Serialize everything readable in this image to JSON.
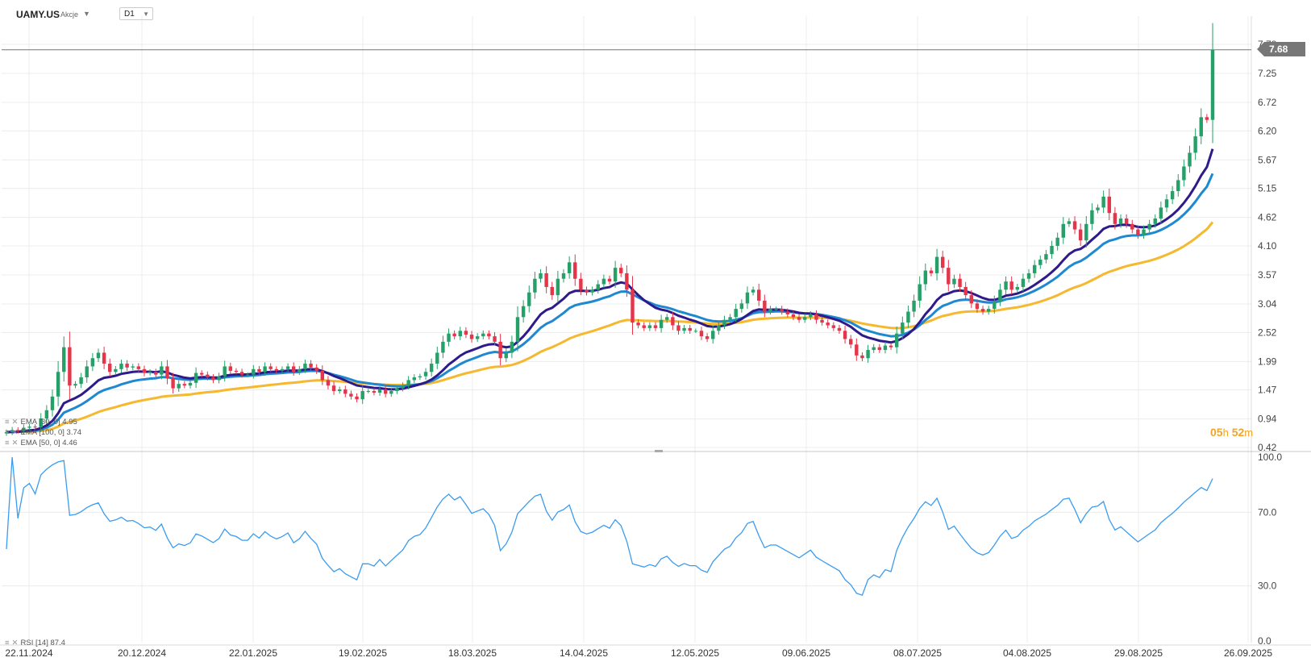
{
  "header": {
    "symbol": "UAMY.US",
    "instrument_type": "Akcje",
    "timeframe": "D1"
  },
  "price_axis": {
    "labels": [
      "7.78",
      "7.25",
      "6.72",
      "6.20",
      "5.67",
      "5.15",
      "4.62",
      "4.10",
      "3.57",
      "3.04",
      "2.52",
      "1.99",
      "1.47",
      "0.94",
      "0.42"
    ],
    "current_price_label": "7.68",
    "current_price": 7.68
  },
  "rsi_axis": {
    "labels": [
      "100.0",
      "70.0",
      "30.0",
      "0.0"
    ]
  },
  "date_axis": {
    "labels": [
      "22.11.2024",
      "20.12.2024",
      "22.01.2025",
      "19.02.2025",
      "18.03.2025",
      "14.04.2025",
      "12.05.2025",
      "09.06.2025",
      "08.07.2025",
      "04.08.2025",
      "29.08.2025",
      "26.09.2025"
    ]
  },
  "indicators": {
    "ema30": {
      "label": "EMA [30, 0] 4.95",
      "color": "#2e1a8a"
    },
    "ema50_blue": {
      "label": "EMA [100, 0] 3.74",
      "color": "#1e88d0"
    },
    "ema50_yellow": {
      "label": "EMA [50, 0] 4.46",
      "color": "#f5b82e"
    },
    "rsi": {
      "label": "RSI [14] 87.4",
      "color": "#3a9cf0"
    }
  },
  "countdown": {
    "h": "05",
    "h_unit": "h",
    "m": "52",
    "m_unit": "m"
  },
  "colors": {
    "up": "#26a069",
    "down": "#e5354a",
    "grid": "#ececec"
  },
  "chart_data": {
    "type": "candlestick",
    "title": "UAMY.US",
    "xlabel": "",
    "ylabel": "",
    "ylim": [
      0.42,
      8.0
    ],
    "x_range": [
      "22.11.2024",
      "26.09.2025"
    ],
    "close": [
      0.7,
      0.74,
      0.72,
      0.78,
      0.8,
      0.79,
      0.95,
      1.1,
      1.35,
      1.8,
      2.25,
      1.55,
      1.58,
      1.7,
      1.9,
      2.05,
      2.15,
      1.95,
      1.8,
      1.85,
      1.95,
      1.88,
      1.9,
      1.85,
      1.78,
      1.8,
      1.75,
      1.9,
      1.68,
      1.5,
      1.58,
      1.55,
      1.6,
      1.78,
      1.75,
      1.7,
      1.65,
      1.72,
      1.9,
      1.82,
      1.8,
      1.75,
      1.75,
      1.85,
      1.8,
      1.9,
      1.85,
      1.82,
      1.85,
      1.9,
      1.8,
      1.85,
      1.95,
      1.88,
      1.82,
      1.65,
      1.55,
      1.45,
      1.48,
      1.4,
      1.35,
      1.3,
      1.45,
      1.45,
      1.42,
      1.48,
      1.4,
      1.45,
      1.5,
      1.55,
      1.65,
      1.7,
      1.72,
      1.8,
      1.95,
      2.15,
      2.35,
      2.5,
      2.45,
      2.55,
      2.48,
      2.4,
      2.45,
      2.5,
      2.45,
      2.35,
      2.05,
      2.15,
      2.35,
      2.8,
      3.0,
      3.25,
      3.5,
      3.6,
      3.35,
      3.2,
      3.5,
      3.6,
      3.8,
      3.5,
      3.3,
      3.25,
      3.3,
      3.4,
      3.5,
      3.45,
      3.7,
      3.6,
      3.3,
      2.7,
      2.65,
      2.6,
      2.65,
      2.6,
      2.75,
      2.8,
      2.65,
      2.55,
      2.6,
      2.55,
      2.55,
      2.45,
      2.4,
      2.55,
      2.65,
      2.75,
      2.8,
      2.95,
      3.05,
      3.25,
      3.3,
      3.1,
      2.9,
      2.95,
      2.95,
      2.9,
      2.85,
      2.8,
      2.75,
      2.8,
      2.85,
      2.75,
      2.7,
      2.65,
      2.6,
      2.55,
      2.4,
      2.3,
      2.1,
      2.05,
      2.2,
      2.25,
      2.2,
      2.28,
      2.25,
      2.5,
      2.7,
      2.9,
      3.1,
      3.4,
      3.65,
      3.6,
      3.9,
      3.7,
      3.4,
      3.5,
      3.35,
      3.2,
      3.05,
      2.95,
      2.9,
      2.95,
      3.1,
      3.3,
      3.45,
      3.3,
      3.35,
      3.5,
      3.6,
      3.75,
      3.85,
      3.95,
      4.1,
      4.25,
      4.5,
      4.55,
      4.4,
      4.2,
      4.5,
      4.75,
      4.8,
      5.0,
      4.7,
      4.5,
      4.6,
      4.5,
      4.4,
      4.3,
      4.4,
      4.5,
      4.6,
      4.8,
      4.95,
      5.1,
      5.3,
      5.55,
      5.8,
      6.1,
      6.45,
      6.4,
      7.68
    ]
  }
}
